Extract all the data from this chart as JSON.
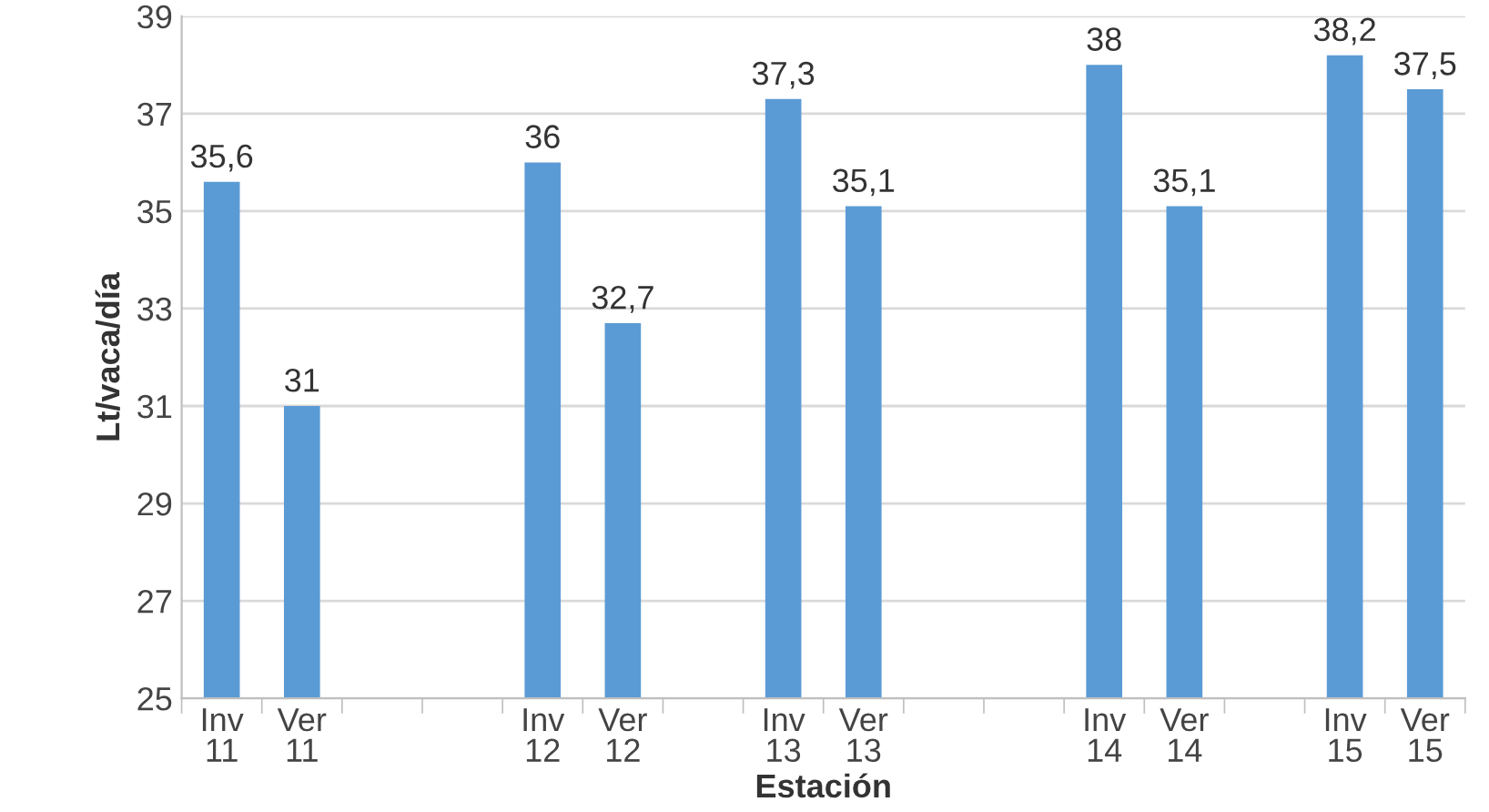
{
  "chart_data": {
    "type": "bar",
    "xlabel": "Estación",
    "ylabel": "Lt/vaca/día",
    "categories": [
      "Inv\n11",
      "Ver\n11",
      null,
      null,
      "Inv\n12",
      "Ver\n12",
      null,
      "Inv\n13",
      "Ver\n13",
      null,
      null,
      "Inv\n14",
      "Ver\n14",
      null,
      "Inv\n15",
      "Ver\n15"
    ],
    "values": [
      35.6,
      31,
      null,
      null,
      36,
      32.7,
      null,
      37.3,
      35.1,
      null,
      null,
      38,
      35.1,
      null,
      38.2,
      37.5
    ],
    "value_labels": [
      "35,6",
      "31",
      null,
      null,
      "36",
      "32,7",
      null,
      "37,3",
      "35,1",
      null,
      null,
      "38",
      "35,1",
      null,
      "38,2",
      "37,5"
    ],
    "color": "#5b9bd5",
    "ylim": [
      25,
      39
    ],
    "yticks": [
      25,
      27,
      29,
      31,
      33,
      35,
      37,
      39
    ],
    "grid": "y"
  }
}
